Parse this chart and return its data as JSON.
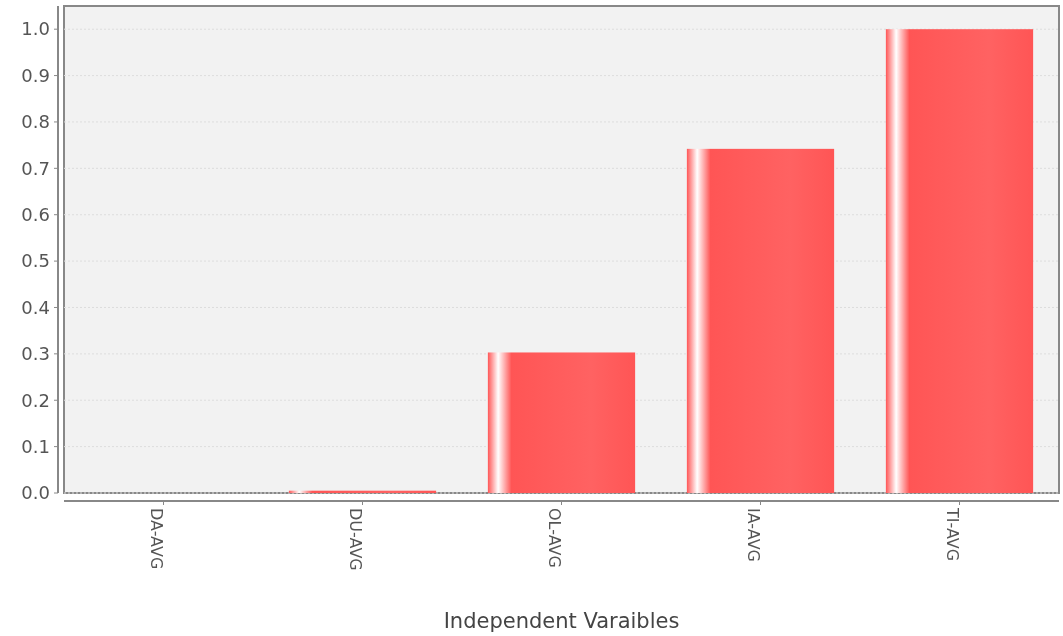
{
  "chart_data": {
    "type": "bar",
    "xlabel": "Independent Varaibles",
    "categories": [
      "DA-AVG",
      "DU-AVG",
      "OL-AVG",
      "IA-AVG",
      "TI-AVG"
    ],
    "values": [
      0,
      0.005,
      0.303,
      0.742,
      1.0
    ],
    "color": "#ff5555",
    "ylim": [
      0,
      1.05
    ],
    "yticks": [
      {
        "value": 0,
        "label": "0.0"
      },
      {
        "value": 0.1,
        "label": "0.1"
      },
      {
        "value": 0.2,
        "label": "0.2"
      },
      {
        "value": 0.3,
        "label": "0.3"
      },
      {
        "value": 0.4,
        "label": "0.4"
      },
      {
        "value": 0.5,
        "label": "0.5"
      },
      {
        "value": 0.6,
        "label": "0.6"
      },
      {
        "value": 0.7,
        "label": "0.7"
      },
      {
        "value": 0.8,
        "label": "0.8"
      },
      {
        "value": 0.9,
        "label": "0.9"
      },
      {
        "value": 1.0,
        "label": "1.0"
      }
    ],
    "grid": "y"
  }
}
